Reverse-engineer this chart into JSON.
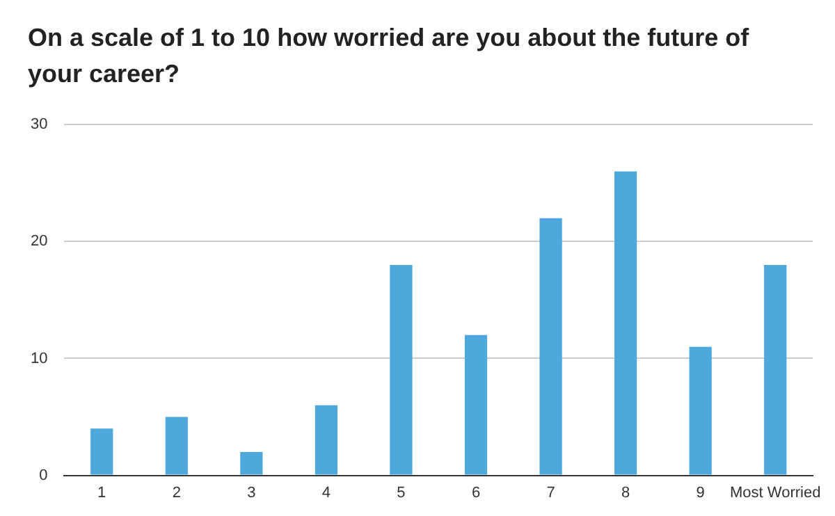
{
  "chart_data": {
    "type": "bar",
    "title": "On a scale of 1 to 10 how worried are you about the future of your career?",
    "categories": [
      "1",
      "2",
      "3",
      "4",
      "5",
      "6",
      "7",
      "8",
      "9",
      "Most Worried"
    ],
    "values": [
      4,
      5,
      2,
      6,
      18,
      12,
      22,
      26,
      11,
      18
    ],
    "color": "#4fa8dc",
    "ylim": [
      0,
      30
    ],
    "yticks": [
      0,
      10,
      20,
      30
    ],
    "grid": "y"
  }
}
